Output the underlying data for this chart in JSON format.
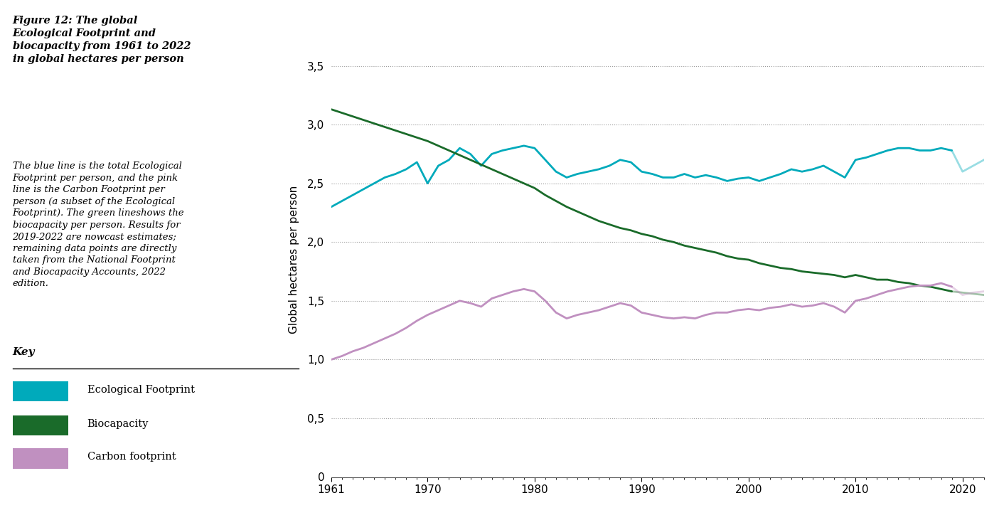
{
  "years": [
    1961,
    1962,
    1963,
    1964,
    1965,
    1966,
    1967,
    1968,
    1969,
    1970,
    1971,
    1972,
    1973,
    1974,
    1975,
    1976,
    1977,
    1978,
    1979,
    1980,
    1981,
    1982,
    1983,
    1984,
    1985,
    1986,
    1987,
    1988,
    1989,
    1990,
    1991,
    1992,
    1993,
    1994,
    1995,
    1996,
    1997,
    1998,
    1999,
    2000,
    2001,
    2002,
    2003,
    2004,
    2005,
    2006,
    2007,
    2008,
    2009,
    2010,
    2011,
    2012,
    2013,
    2014,
    2015,
    2016,
    2017,
    2018,
    2019,
    2020,
    2021,
    2022
  ],
  "ecological_footprint": [
    2.3,
    2.35,
    2.4,
    2.45,
    2.5,
    2.55,
    2.58,
    2.62,
    2.68,
    2.5,
    2.65,
    2.7,
    2.8,
    2.75,
    2.65,
    2.75,
    2.78,
    2.8,
    2.82,
    2.8,
    2.7,
    2.6,
    2.55,
    2.58,
    2.6,
    2.62,
    2.65,
    2.7,
    2.68,
    2.6,
    2.58,
    2.55,
    2.55,
    2.58,
    2.55,
    2.57,
    2.55,
    2.52,
    2.54,
    2.55,
    2.52,
    2.55,
    2.58,
    2.62,
    2.6,
    2.62,
    2.65,
    2.6,
    2.55,
    2.7,
    2.72,
    2.75,
    2.78,
    2.8,
    2.8,
    2.78,
    2.78,
    2.8,
    2.78,
    2.6,
    2.65,
    2.7
  ],
  "biocapacity": [
    3.13,
    3.1,
    3.07,
    3.04,
    3.01,
    2.98,
    2.95,
    2.92,
    2.89,
    2.86,
    2.82,
    2.78,
    2.74,
    2.7,
    2.66,
    2.62,
    2.58,
    2.54,
    2.5,
    2.46,
    2.4,
    2.35,
    2.3,
    2.26,
    2.22,
    2.18,
    2.15,
    2.12,
    2.1,
    2.07,
    2.05,
    2.02,
    2.0,
    1.97,
    1.95,
    1.93,
    1.91,
    1.88,
    1.86,
    1.85,
    1.82,
    1.8,
    1.78,
    1.77,
    1.75,
    1.74,
    1.73,
    1.72,
    1.7,
    1.72,
    1.7,
    1.68,
    1.68,
    1.66,
    1.65,
    1.63,
    1.62,
    1.6,
    1.58,
    1.57,
    1.56,
    1.55
  ],
  "carbon_footprint": [
    1.0,
    1.03,
    1.07,
    1.1,
    1.14,
    1.18,
    1.22,
    1.27,
    1.33,
    1.38,
    1.42,
    1.46,
    1.5,
    1.48,
    1.45,
    1.52,
    1.55,
    1.58,
    1.6,
    1.58,
    1.5,
    1.4,
    1.35,
    1.38,
    1.4,
    1.42,
    1.45,
    1.48,
    1.46,
    1.4,
    1.38,
    1.36,
    1.35,
    1.36,
    1.35,
    1.38,
    1.4,
    1.4,
    1.42,
    1.43,
    1.42,
    1.44,
    1.45,
    1.47,
    1.45,
    1.46,
    1.48,
    1.45,
    1.4,
    1.5,
    1.52,
    1.55,
    1.58,
    1.6,
    1.62,
    1.63,
    1.63,
    1.65,
    1.62,
    1.55,
    1.57,
    1.58
  ],
  "ecological_footprint_color": "#00AABB",
  "biocapacity_color": "#1a6b2a",
  "carbon_footprint_color": "#c090c0",
  "ylabel": "Global hectares per person",
  "yticks": [
    0,
    0.5,
    1.0,
    1.5,
    2.0,
    2.5,
    3.0,
    3.5
  ],
  "ytick_labels": [
    "0",
    "0,5",
    "1,0",
    "1,5",
    "2,0",
    "2,5",
    "3,0",
    "3,5"
  ],
  "xtick_years": [
    1961,
    1970,
    1980,
    1990,
    2000,
    2010,
    2020
  ],
  "ylim": [
    0,
    3.7
  ],
  "title_wrapped": "Figure 12: The global\nEcological Footprint and\nbiocapacity from 1961 to 2022\nin global hectares per person",
  "subtitle_wrapped": "The blue line is the total Ecological\nFootprint per person, and the pink\nline is the Carbon Footprint per\nperson (a subset of the Ecological\nFootprint). The green lineshows the\nbiocapacity per person. Results for\n2019-2022 are nowcast estimates;\nremaining data points are directly\ntaken from the National Footprint\nand Biocapacity Accounts, 2022\nedition.",
  "key_label": "Key",
  "legend_labels": [
    "Ecological Footprint",
    "Biocapacity",
    "Carbon footprint"
  ],
  "grid_color": "#999999",
  "background_color": "#ffffff",
  "nowcast_start_year": 2019
}
